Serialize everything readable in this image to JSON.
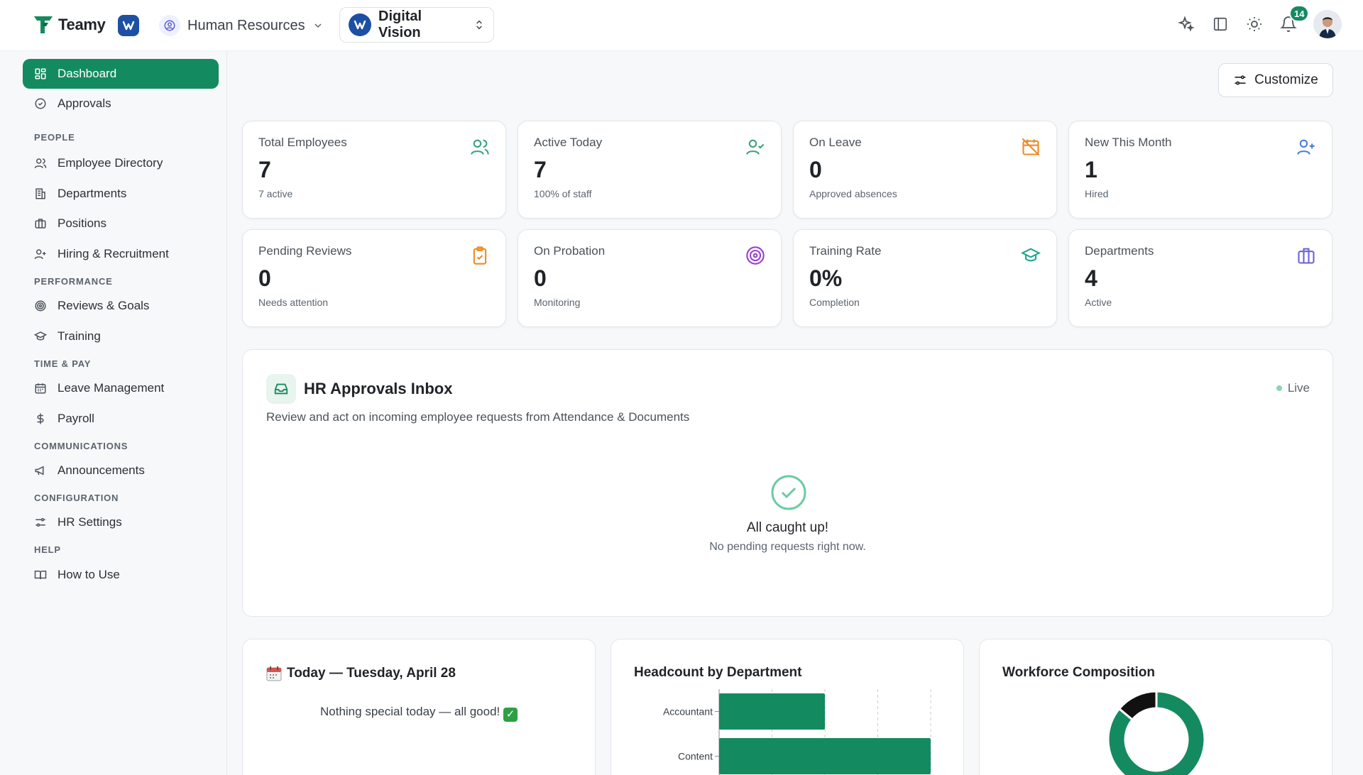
{
  "app": {
    "name": "Teamy"
  },
  "header": {
    "module": "Human Resources",
    "company": "Digital Vision",
    "notifications_count": "14"
  },
  "sidebar": {
    "items": [
      {
        "label": "Dashboard",
        "icon": "dashboard-icon",
        "active": true
      },
      {
        "label": "Approvals",
        "icon": "check-circle-icon"
      }
    ],
    "sections": [
      {
        "title": "PEOPLE",
        "items": [
          "Employee Directory",
          "Departments",
          "Positions",
          "Hiring & Recruitment"
        ]
      },
      {
        "title": "PERFORMANCE",
        "items": [
          "Reviews & Goals",
          "Training"
        ]
      },
      {
        "title": "TIME & PAY",
        "items": [
          "Leave Management",
          "Payroll"
        ]
      },
      {
        "title": "COMMUNICATIONS",
        "items": [
          "Announcements"
        ]
      },
      {
        "title": "CONFIGURATION",
        "items": [
          "HR Settings"
        ]
      },
      {
        "title": "HELP",
        "items": [
          "How to Use"
        ]
      }
    ]
  },
  "toolbar": {
    "customize_label": "Customize"
  },
  "stats": [
    {
      "title": "Total Employees",
      "value": "7",
      "sub": "7 active",
      "icon": "users-icon",
      "color": "#3aa37a"
    },
    {
      "title": "Active Today",
      "value": "7",
      "sub": "100% of staff",
      "icon": "user-check-icon",
      "color": "#3aa37a"
    },
    {
      "title": "On Leave",
      "value": "0",
      "sub": "Approved absences",
      "icon": "calendar-off-icon",
      "color": "#f08a24"
    },
    {
      "title": "New This Month",
      "value": "1",
      "sub": "Hired",
      "icon": "user-plus-icon",
      "color": "#4a7fd4"
    },
    {
      "title": "Pending Reviews",
      "value": "0",
      "sub": "Needs attention",
      "icon": "clipboard-check-icon",
      "color": "#f08a24"
    },
    {
      "title": "On Probation",
      "value": "0",
      "sub": "Monitoring",
      "icon": "target-icon",
      "color": "#9b3fd1"
    },
    {
      "title": "Training Rate",
      "value": "0%",
      "sub": "Completion",
      "icon": "graduation-cap-icon",
      "color": "#1fa88a"
    },
    {
      "title": "Departments",
      "value": "4",
      "sub": "Active",
      "icon": "briefcase-icon",
      "color": "#6a63d6"
    }
  ],
  "inbox": {
    "title": "HR Approvals Inbox",
    "description": "Review and act on incoming employee requests from Attendance & Documents",
    "status": "Live",
    "empty_title": "All caught up!",
    "empty_description": "No pending requests right now."
  },
  "today": {
    "title": "Today — Tuesday, April 28",
    "message": "Nothing special today — all good!"
  },
  "headcount": {
    "title": "Headcount by Department"
  },
  "workforce": {
    "title": "Workforce Composition"
  },
  "chart_data": [
    {
      "type": "bar",
      "orientation": "horizontal",
      "title": "Headcount by Department",
      "categories": [
        "Accountant",
        "Content"
      ],
      "values": [
        2,
        4
      ],
      "xlim": [
        0,
        4
      ],
      "grid": true,
      "color": "#148a60"
    },
    {
      "type": "pie",
      "donut": true,
      "title": "Workforce Composition",
      "values": [
        86,
        14
      ],
      "colors": [
        "#148a60",
        "#111111"
      ]
    }
  ]
}
